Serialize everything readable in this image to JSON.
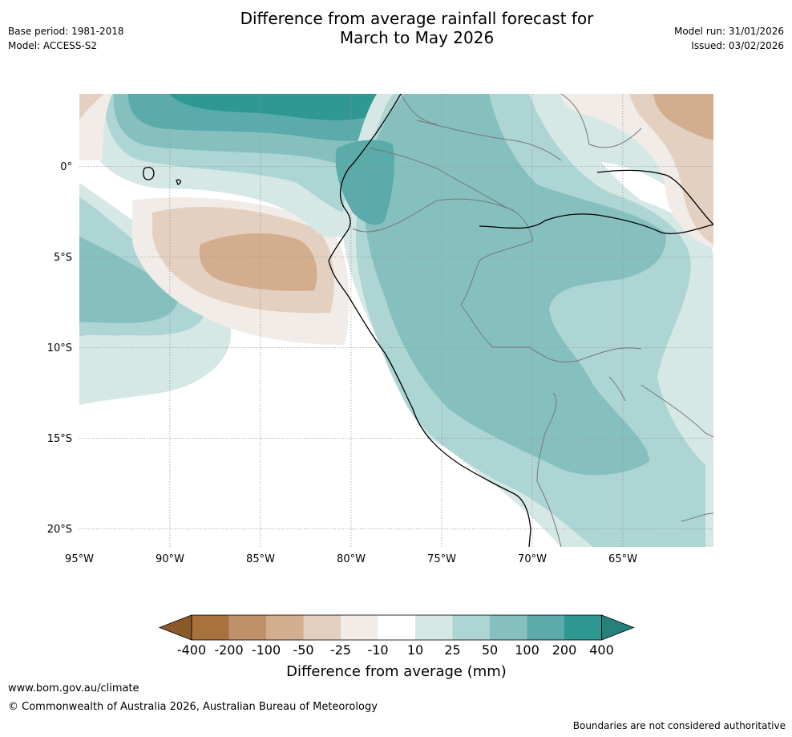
{
  "header": {
    "title_line1": "Difference from average rainfall forecast for",
    "title_line2": "March to May 2026",
    "base_period": "Base period: 1981-2018",
    "model": "Model: ACCESS-S2",
    "model_run": "Model run: 31/01/2026",
    "issued": "Issued: 03/02/2026"
  },
  "map": {
    "lon_range": [
      -95,
      -60
    ],
    "lat_range": [
      -21,
      4
    ],
    "lon_ticks": [
      {
        "value": -95,
        "label": "95°W"
      },
      {
        "value": -90,
        "label": "90°W"
      },
      {
        "value": -85,
        "label": "85°W"
      },
      {
        "value": -80,
        "label": "80°W"
      },
      {
        "value": -75,
        "label": "75°W"
      },
      {
        "value": -70,
        "label": "70°W"
      },
      {
        "value": -65,
        "label": "65°W"
      }
    ],
    "lat_ticks": [
      {
        "value": 0,
        "label": "0°"
      },
      {
        "value": -5,
        "label": "5°S"
      },
      {
        "value": -10,
        "label": "10°S"
      },
      {
        "value": -15,
        "label": "15°S"
      },
      {
        "value": -20,
        "label": "20°S"
      }
    ]
  },
  "colorbar": {
    "title": "Difference from average (mm)",
    "tick_labels": [
      "-400",
      "-200",
      "-100",
      "-50",
      "-25",
      "-10",
      "10",
      "25",
      "50",
      "100",
      "200",
      "400"
    ],
    "colors": [
      "#8b5a2b",
      "#a8713d",
      "#c09068",
      "#d2ae8e",
      "#e4d0c0",
      "#f1ece7",
      "#ffffff",
      "#d5e8e6",
      "#acd5d3",
      "#85c0bf",
      "#5aabaa",
      "#2f9893",
      "#26807c"
    ]
  },
  "footer": {
    "link": "www.bom.gov.au/climate",
    "copyright": "© Commonwealth of Australia 2026, Australian Bureau of Meteorology",
    "note": "Boundaries are not considered authoritative"
  }
}
